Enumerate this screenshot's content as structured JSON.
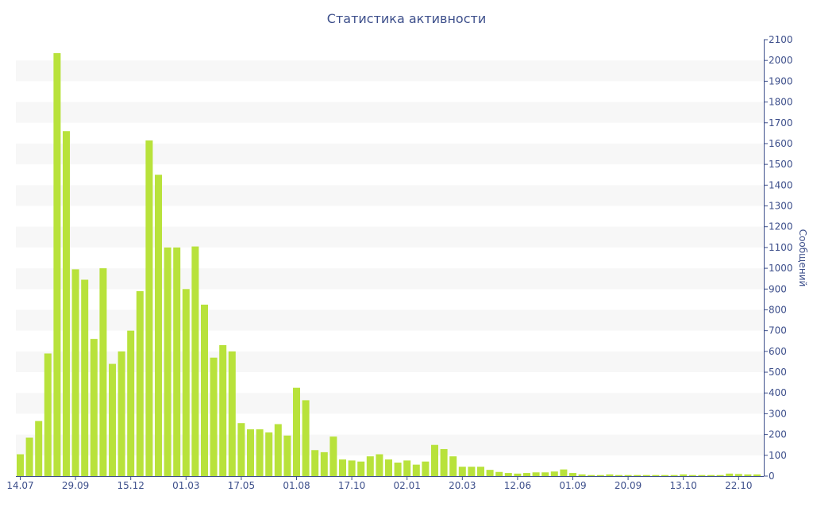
{
  "chart_data": {
    "type": "bar",
    "title": "Статистика активности",
    "ylabel": "Сообщений",
    "xlabel": "",
    "ylim": [
      0,
      2100
    ],
    "y_ticks": [
      0,
      100,
      200,
      300,
      400,
      500,
      600,
      700,
      800,
      900,
      1000,
      1100,
      1200,
      1300,
      1400,
      1500,
      1600,
      1700,
      1800,
      1900,
      2000,
      2100
    ],
    "y_axis_side": "right",
    "grid": "alternating horizontal bands",
    "x_tick_labels": [
      "14.07",
      "29.09",
      "15.12",
      "01.03",
      "17.05",
      "01.08",
      "17.10",
      "02.01",
      "20.03",
      "12.06",
      "01.09",
      "20.09",
      "13.10",
      "22.10"
    ],
    "values": [
      105,
      185,
      265,
      590,
      2035,
      1660,
      995,
      945,
      660,
      1000,
      540,
      600,
      700,
      890,
      1615,
      1450,
      1100,
      1100,
      900,
      1105,
      825,
      570,
      630,
      600,
      255,
      225,
      225,
      210,
      250,
      195,
      425,
      365,
      125,
      115,
      190,
      80,
      75,
      70,
      95,
      105,
      80,
      65,
      75,
      55,
      70,
      150,
      130,
      95,
      45,
      45,
      45,
      30,
      20,
      15,
      12,
      15,
      18,
      18,
      22,
      32,
      15,
      8,
      5,
      5,
      8,
      5,
      5,
      5,
      5,
      5,
      5,
      5,
      8,
      5,
      5,
      5,
      5,
      12,
      10,
      8,
      8
    ],
    "colors": {
      "bar": "#b8e23b",
      "band": "#f7f7f7",
      "axis": "#3d4f8b",
      "text": "#3d4f8b"
    }
  }
}
